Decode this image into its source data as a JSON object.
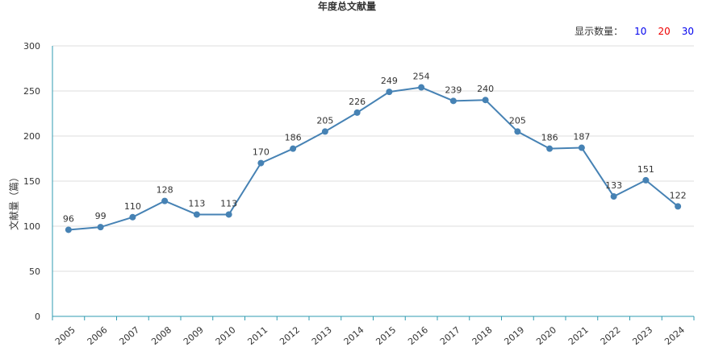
{
  "chart_data": {
    "type": "line",
    "title": "年度总文献量",
    "ylabel": "文献量（篇）",
    "xlabel": "",
    "ylim": [
      0,
      300
    ],
    "yticks": [
      0,
      50,
      100,
      150,
      200,
      250,
      300
    ],
    "grid": "horizontal",
    "categories": [
      "2005",
      "2006",
      "2007",
      "2008",
      "2009",
      "2010",
      "2011",
      "2012",
      "2013",
      "2014",
      "2015",
      "2016",
      "2017",
      "2018",
      "2019",
      "2020",
      "2021",
      "2022",
      "2023",
      "2024"
    ],
    "values": [
      96,
      99,
      110,
      128,
      113,
      113,
      170,
      186,
      205,
      226,
      249,
      254,
      239,
      240,
      205,
      186,
      187,
      133,
      151,
      122
    ],
    "line_color": "#4682b4",
    "axis_color": "#2f9bb0"
  },
  "count_selector": {
    "label": "显示数量：",
    "options": [
      {
        "label": "10",
        "color": "#0000ee"
      },
      {
        "label": "20",
        "color": "#ee0000"
      },
      {
        "label": "30",
        "color": "#0000ee"
      }
    ]
  }
}
